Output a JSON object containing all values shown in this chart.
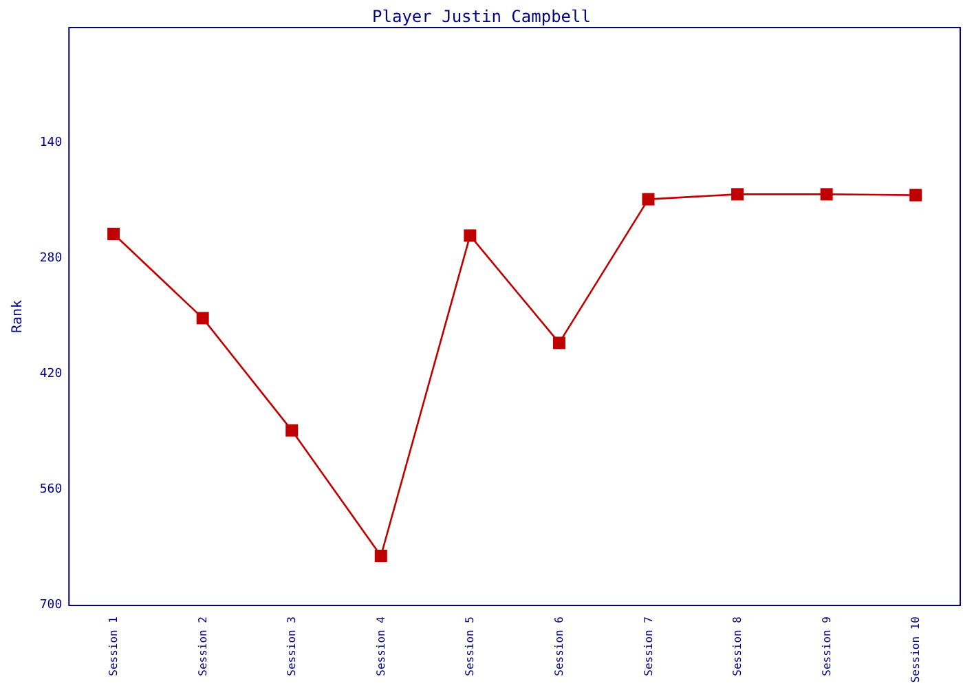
{
  "chart_data": {
    "type": "line",
    "title": "Player Justin Campbell",
    "ylabel": "Rank",
    "categories": [
      "Session 1",
      "Session 2",
      "Session 3",
      "Session 4",
      "Session 5",
      "Session 6",
      "Session 7",
      "Session 8",
      "Session 9",
      "Session 10"
    ],
    "series": [
      {
        "color": "#c00000",
        "values": [
          250,
          352,
          488,
          640,
          252,
          382,
          208,
          202,
          202,
          203
        ]
      }
    ],
    "ylim": [
      700,
      0
    ],
    "yticks": [
      140,
      280,
      420,
      560,
      700
    ],
    "grid": false,
    "marker": "square",
    "line_style": "solid"
  }
}
